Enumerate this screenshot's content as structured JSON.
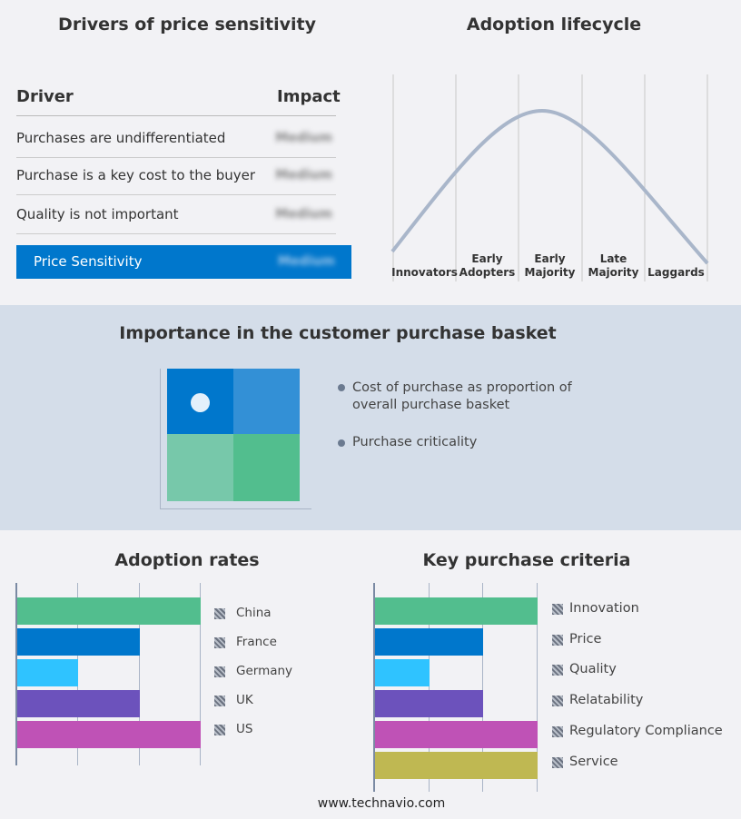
{
  "drivers": {
    "title": "Drivers of price sensitivity",
    "col_driver": "Driver",
    "col_impact": "Impact",
    "rows": [
      {
        "driver": "Purchases are undifferentiated",
        "impact": "Medium"
      },
      {
        "driver": "Purchase is a key cost to the buyer",
        "impact": "Medium"
      },
      {
        "driver": "Quality is not important",
        "impact": "Medium"
      }
    ],
    "summary": {
      "label": "Price Sensitivity",
      "impact": "Medium"
    }
  },
  "lifecycle": {
    "title": "Adoption lifecycle",
    "stages": [
      "Innovators",
      "Early Adopters",
      "Early Majority",
      "Late Majority",
      "Laggards"
    ]
  },
  "basket": {
    "title": "Importance in the customer purchase basket",
    "legend": [
      "Cost of purchase as proportion of overall purchase basket",
      "Purchase criticality"
    ],
    "colors": [
      "#0077cc",
      "#3390d6",
      "#77c8aa",
      "#52be8e"
    ]
  },
  "chart_data": [
    {
      "type": "bar",
      "title": "Adoption rates",
      "categories": [
        "China",
        "France",
        "Germany",
        "UK",
        "US"
      ],
      "values": [
        3,
        2,
        1,
        2,
        3
      ],
      "xlim": [
        0,
        3
      ],
      "colors": [
        "#52be8e",
        "#0077cc",
        "#2fc3ff",
        "#6c52bc",
        "#bf52b6"
      ],
      "grid": true,
      "legend": "right"
    },
    {
      "type": "bar",
      "title": "Key purchase criteria",
      "categories": [
        "Innovation",
        "Price",
        "Quality",
        "Relatability",
        "Regulatory Compliance",
        "Service"
      ],
      "values": [
        3,
        2,
        1,
        2,
        3,
        3
      ],
      "xlim": [
        0,
        3
      ],
      "colors": [
        "#52be8e",
        "#0077cc",
        "#2fc3ff",
        "#6c52bc",
        "#bf52b6",
        "#bfb852"
      ],
      "grid": true,
      "legend": "right"
    }
  ],
  "footer": "www.technavio.com"
}
